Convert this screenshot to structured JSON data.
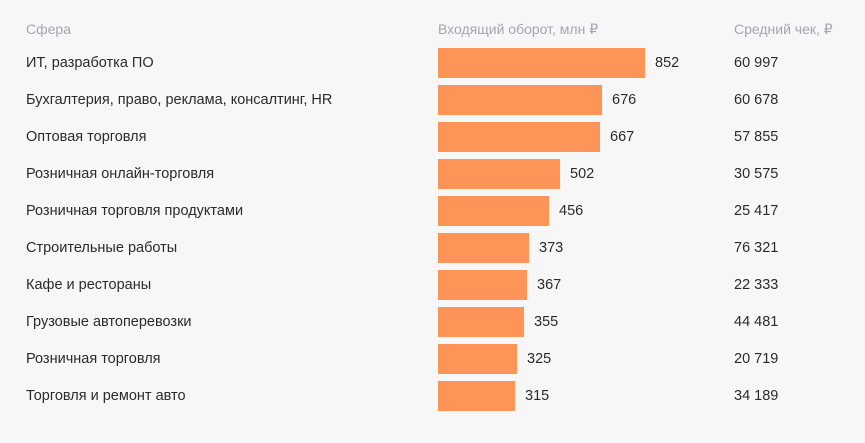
{
  "chart_data": {
    "type": "bar",
    "orientation": "horizontal",
    "headers": {
      "category": "Сфера",
      "value": "Входящий оборот, млн ₽",
      "extra": "Средний чек, ₽"
    },
    "categories": [
      "ИТ, разработка ПО",
      "Бухгалтерия, право, реклама, консалтинг, HR",
      "Оптовая торговля",
      "Розничная онлайн-торговля",
      "Розничная торговля продуктами",
      "Строительные работы",
      "Кафе и рестораны",
      "Грузовые автоперевозки",
      "Розничная торговля",
      "Торговля и ремонт авто"
    ],
    "values": [
      852,
      676,
      667,
      502,
      456,
      373,
      367,
      355,
      325,
      315
    ],
    "avg_check": [
      "60 997",
      "60 678",
      "57 855",
      "30 575",
      "25 417",
      "76 321",
      "22 333",
      "44 481",
      "20 719",
      "34 189"
    ],
    "bar_color": "#ff9459",
    "xlim": [
      0,
      852
    ]
  }
}
